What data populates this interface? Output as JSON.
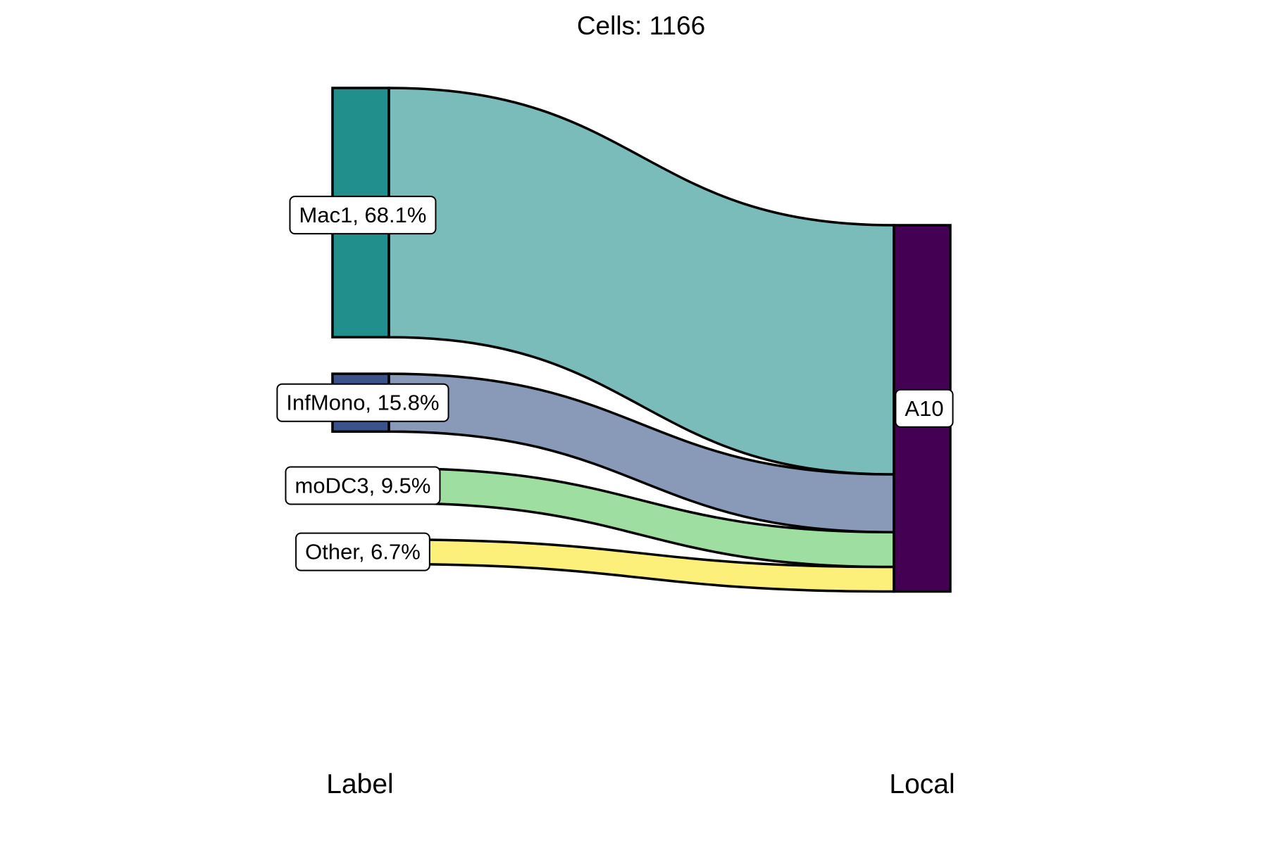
{
  "chart_data": {
    "type": "alluvial",
    "title": "Cells:  1166",
    "total_cells": 1166,
    "axes": [
      "Label",
      "Local"
    ],
    "flows": [
      {
        "source": "Mac1",
        "target": "A10",
        "percent": 68.1,
        "node_color": "#218F8B",
        "flow_color": "#7ABCBA"
      },
      {
        "source": "InfMono",
        "target": "A10",
        "percent": 15.8,
        "node_color": "#3B528B",
        "flow_color": "#8999B8"
      },
      {
        "source": "moDC3",
        "target": "A10",
        "percent": 9.5,
        "node_color": "#5EC962",
        "flow_color": "#9EDEA0"
      },
      {
        "source": "Other",
        "target": "A10",
        "percent": 6.7,
        "node_color": "#FDE725",
        "flow_color": "#FDF07A"
      }
    ],
    "source_labels": [
      "Mac1, 68.1%",
      "InfMono, 15.8%",
      "moDC3, 9.5%",
      "Other, 6.7%"
    ],
    "target_node": {
      "name": "A10",
      "label": "A10",
      "color": "#440154"
    }
  }
}
